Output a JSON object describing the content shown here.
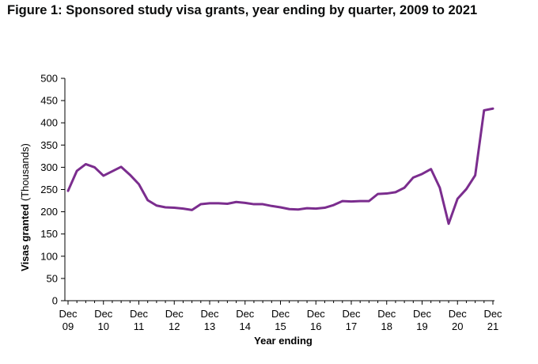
{
  "title": "Figure 1: Sponsored study visa grants, year ending by quarter, 2009 to 2021",
  "chart_data": {
    "type": "line",
    "title": "Figure 1: Sponsored study visa grants, year ending by quarter, 2009 to 2021",
    "xlabel": "Year ending",
    "ylabel": "Visas granted",
    "ylabel_unit": "(Thousands)",
    "ylim": [
      0,
      500
    ],
    "yticks": [
      0,
      50,
      100,
      150,
      200,
      250,
      300,
      350,
      400,
      450,
      500
    ],
    "grid": false,
    "legend": "none",
    "color": "#7b2d8e",
    "xtick_labels": [
      {
        "line1": "Dec",
        "line2": "09"
      },
      {
        "line1": "Dec",
        "line2": "10"
      },
      {
        "line1": "Dec",
        "line2": "11"
      },
      {
        "line1": "Dec",
        "line2": "12"
      },
      {
        "line1": "Dec",
        "line2": "13"
      },
      {
        "line1": "Dec",
        "line2": "14"
      },
      {
        "line1": "Dec",
        "line2": "15"
      },
      {
        "line1": "Dec",
        "line2": "16"
      },
      {
        "line1": "Dec",
        "line2": "17"
      },
      {
        "line1": "Dec",
        "line2": "18"
      },
      {
        "line1": "Dec",
        "line2": "19"
      },
      {
        "line1": "Dec",
        "line2": "20"
      },
      {
        "line1": "Dec",
        "line2": "21"
      }
    ],
    "x": [
      "Dec 09",
      "Mar 10",
      "Jun 10",
      "Sep 10",
      "Dec 10",
      "Mar 11",
      "Jun 11",
      "Sep 11",
      "Dec 11",
      "Mar 12",
      "Jun 12",
      "Sep 12",
      "Dec 12",
      "Mar 13",
      "Jun 13",
      "Sep 13",
      "Dec 13",
      "Mar 14",
      "Jun 14",
      "Sep 14",
      "Dec 14",
      "Mar 15",
      "Jun 15",
      "Sep 15",
      "Dec 15",
      "Mar 16",
      "Jun 16",
      "Sep 16",
      "Dec 16",
      "Mar 17",
      "Jun 17",
      "Sep 17",
      "Dec 17",
      "Mar 18",
      "Jun 18",
      "Sep 18",
      "Dec 18",
      "Mar 19",
      "Jun 19",
      "Sep 19",
      "Dec 19",
      "Mar 20",
      "Jun 20",
      "Sep 20",
      "Dec 20",
      "Mar 21",
      "Jun 21",
      "Sep 21",
      "Dec 21"
    ],
    "values": [
      247,
      292,
      307,
      300,
      281,
      291,
      301,
      283,
      262,
      226,
      214,
      210,
      209,
      207,
      204,
      217,
      219,
      219,
      218,
      222,
      220,
      217,
      217,
      213,
      210,
      206,
      205,
      208,
      207,
      209,
      215,
      224,
      223,
      224,
      224,
      240,
      241,
      244,
      254,
      277,
      285,
      296,
      254,
      173,
      229,
      251,
      282,
      428,
      432
    ]
  }
}
